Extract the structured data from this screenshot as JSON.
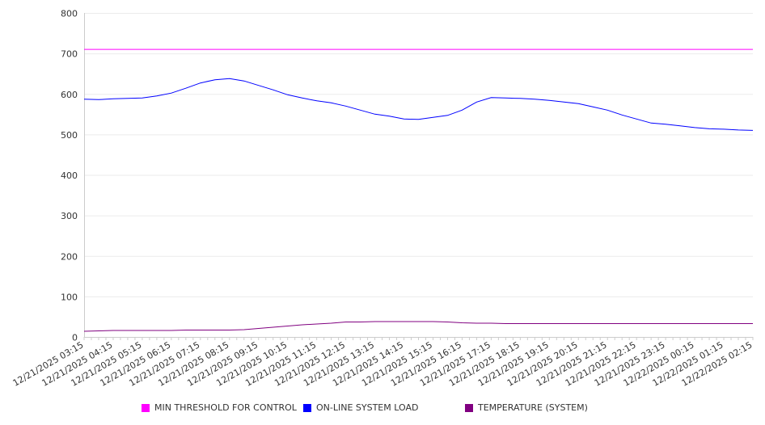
{
  "chart_data": {
    "type": "line",
    "title": "",
    "xlabel": "",
    "ylabel": "",
    "ylim": [
      0,
      800
    ],
    "yticks": [
      0,
      100,
      200,
      300,
      400,
      500,
      600,
      700,
      800
    ],
    "grid": true,
    "legend_position": "bottom",
    "x_tick_labels": [
      "12/21/2025 03:15",
      "12/21/2025 04:15",
      "12/21/2025 05:15",
      "12/21/2025 06:15",
      "12/21/2025 07:15",
      "12/21/2025 08:15",
      "12/21/2025 09:15",
      "12/21/2025 10:15",
      "12/21/2025 11:15",
      "12/21/2025 12:15",
      "12/21/2025 13:15",
      "12/21/2025 14:15",
      "12/21/2025 15:15",
      "12/21/2025 16:15",
      "12/21/2025 17:15",
      "12/21/2025 18:15",
      "12/21/2025 19:15",
      "12/21/2025 20:15",
      "12/21/2025 21:15",
      "12/21/2025 22:15",
      "12/21/2025 23:15",
      "12/22/2025 00:15",
      "12/22/2025 01:15",
      "12/22/2025 02:15"
    ],
    "x_hours_from_start": [
      0,
      0.5,
      1,
      1.5,
      2,
      2.5,
      3,
      3.5,
      4,
      4.5,
      5,
      5.5,
      6,
      6.5,
      7,
      7.5,
      8,
      8.5,
      9,
      9.5,
      10,
      10.5,
      11,
      11.5,
      12,
      12.5,
      13,
      13.5,
      14,
      14.5,
      15,
      15.5,
      16,
      16.5,
      17,
      17.5,
      18,
      18.5,
      19,
      19.5,
      20,
      20.5,
      21,
      21.5,
      22,
      22.5,
      23
    ],
    "series": [
      {
        "name": "MIN THRESHOLD FOR CONTROL",
        "color": "#ff00ff",
        "values": [
          710,
          710,
          710,
          710,
          710,
          710,
          710,
          710,
          710,
          710,
          710,
          710,
          710,
          710,
          710,
          710,
          710,
          710,
          710,
          710,
          710,
          710,
          710,
          710,
          710,
          710,
          710,
          710,
          710,
          710,
          710,
          710,
          710,
          710,
          710,
          710,
          710,
          710,
          710,
          710,
          710,
          710,
          710,
          710,
          710,
          710,
          710
        ]
      },
      {
        "name": "ON-LINE SYSTEM LOAD",
        "color": "#0000ff",
        "values": [
          587,
          586,
          588,
          589,
          590,
          595,
          602,
          614,
          627,
          635,
          638,
          632,
          621,
          610,
          598,
          590,
          583,
          578,
          570,
          560,
          550,
          545,
          538,
          537,
          542,
          547,
          560,
          580,
          591,
          590,
          589,
          587,
          584,
          580,
          576,
          568,
          560,
          548,
          538,
          528,
          525,
          521,
          517,
          514,
          513,
          511,
          510
        ]
      },
      {
        "name": "TEMPERATURE (SYSTEM)",
        "color": "#800080",
        "values": [
          14,
          15,
          16,
          16,
          16,
          16,
          16,
          17,
          17,
          17,
          17,
          18,
          21,
          24,
          27,
          30,
          32,
          34,
          37,
          37,
          38,
          38,
          38,
          38,
          38,
          37,
          35,
          34,
          34,
          33,
          33,
          33,
          33,
          33,
          33,
          33,
          33,
          33,
          33,
          33,
          33,
          33,
          33,
          33,
          33,
          33,
          33
        ]
      }
    ]
  }
}
